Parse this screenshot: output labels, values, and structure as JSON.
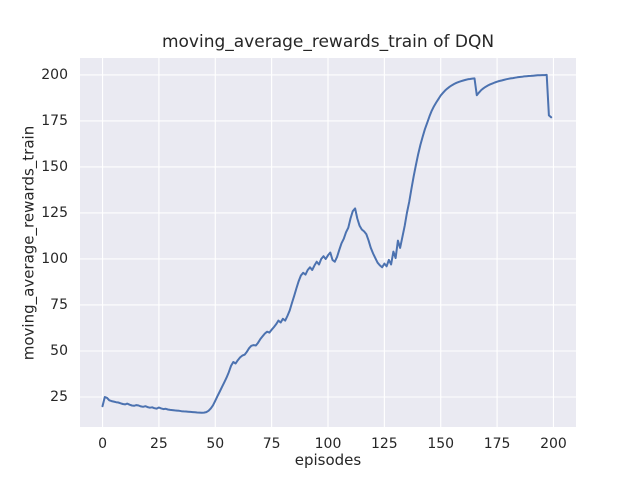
{
  "window": {
    "kind": "matplotlib-seaborn line plot"
  },
  "colors": {
    "figure_bg": "#ffffff",
    "axes_bg": "#eaeaf2",
    "grid": "#ffffff",
    "line": "#4c72b0",
    "text": "#262626"
  },
  "chart_data": {
    "type": "line",
    "title": "moving_average_rewards_train of DQN",
    "xlabel": "episodes",
    "ylabel": "moving_average_rewards_train",
    "legend": null,
    "grid": true,
    "x_ticks": [
      0,
      25,
      50,
      75,
      100,
      125,
      150,
      175,
      200
    ],
    "y_ticks": [
      25,
      50,
      75,
      100,
      125,
      150,
      175,
      200
    ],
    "xlim": [
      -10,
      210
    ],
    "ylim": [
      8.7,
      209.2
    ],
    "series": [
      {
        "name": "moving_average_rewards_train",
        "x_start": 0,
        "x_step": 1,
        "values": [
          20.0,
          25.0,
          24.5,
          23.2,
          22.8,
          22.5,
          22.2,
          22.0,
          21.6,
          21.2,
          21.0,
          21.4,
          20.8,
          20.4,
          20.2,
          20.6,
          20.4,
          19.9,
          19.7,
          20.0,
          19.5,
          19.2,
          19.4,
          18.9,
          18.7,
          19.3,
          18.8,
          18.4,
          18.6,
          18.2,
          18.0,
          17.9,
          17.7,
          17.6,
          17.5,
          17.3,
          17.2,
          17.1,
          17.0,
          16.9,
          16.8,
          16.7,
          16.6,
          16.5,
          16.4,
          16.5,
          16.8,
          17.5,
          18.8,
          20.5,
          23.0,
          25.5,
          28.0,
          30.5,
          33.0,
          35.5,
          38.5,
          42.0,
          44.0,
          43.2,
          45.0,
          46.5,
          47.5,
          48.0,
          49.5,
          51.5,
          52.8,
          53.2,
          53.0,
          54.5,
          56.5,
          58.0,
          59.5,
          60.5,
          60.0,
          61.5,
          63.0,
          64.5,
          66.5,
          65.5,
          67.5,
          66.5,
          69.0,
          72.0,
          76.0,
          80.0,
          84.0,
          88.0,
          91.0,
          92.5,
          91.5,
          94.0,
          95.5,
          94.0,
          96.5,
          98.5,
          97.0,
          100.0,
          101.5,
          100.0,
          102.0,
          103.5,
          99.5,
          98.5,
          101.0,
          105.0,
          108.5,
          111.0,
          114.5,
          117.0,
          122.0,
          126.0,
          127.5,
          122.0,
          118.0,
          116.0,
          115.0,
          113.5,
          110.0,
          106.0,
          103.0,
          100.5,
          98.0,
          96.5,
          95.5,
          97.5,
          96.0,
          99.5,
          97.0,
          104.0,
          100.5,
          110.0,
          106.0,
          112.0,
          118.0,
          125.0,
          131.0,
          138.0,
          145.0,
          151.0,
          157.0,
          162.0,
          166.5,
          170.5,
          174.0,
          177.5,
          180.5,
          183.0,
          185.0,
          187.0,
          188.8,
          190.3,
          191.6,
          192.7,
          193.6,
          194.4,
          195.1,
          195.7,
          196.2,
          196.6,
          197.0,
          197.3,
          197.6,
          197.8,
          198.0,
          198.1,
          189.0,
          190.5,
          191.8,
          192.8,
          193.6,
          194.3,
          194.9,
          195.4,
          195.9,
          196.3,
          196.7,
          197.0,
          197.3,
          197.6,
          197.9,
          198.1,
          198.3,
          198.5,
          198.7,
          198.9,
          199.0,
          199.2,
          199.3,
          199.4,
          199.5,
          199.6,
          199.7,
          199.8,
          199.8,
          199.9,
          199.9,
          200.0,
          178.0,
          177.0
        ]
      }
    ]
  }
}
